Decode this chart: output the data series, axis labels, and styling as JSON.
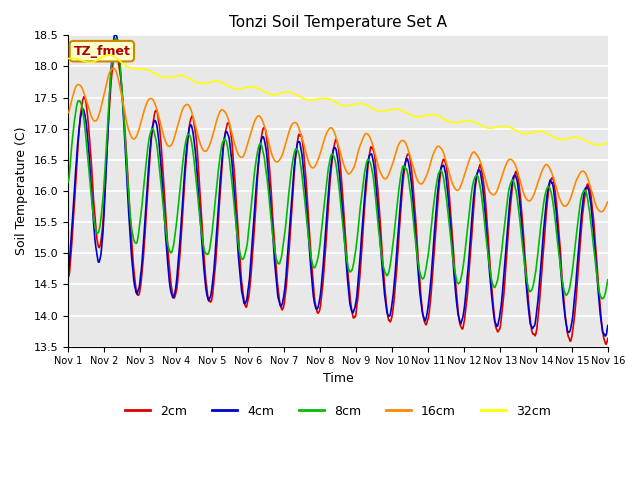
{
  "title": "Tonzi Soil Temperature Set A",
  "xlabel": "Time",
  "ylabel": "Soil Temperature (C)",
  "ylim": [
    13.5,
    18.5
  ],
  "xlim": [
    0,
    15
  ],
  "bg_color": "#e8e8e8",
  "legend_label": "TZ_fmet",
  "series_colors": {
    "2cm": "#dd0000",
    "4cm": "#0000cc",
    "8cm": "#00bb00",
    "16cm": "#ff8800",
    "32cm": "#ffff00"
  },
  "xtick_labels": [
    "Nov 1",
    "Nov 2",
    "Nov 3",
    "Nov 4",
    "Nov 5",
    "Nov 6",
    "Nov 7",
    "Nov 8",
    "Nov 9",
    "Nov 10",
    "Nov 11",
    "Nov 12",
    "Nov 13",
    "Nov 14",
    "Nov 15",
    "Nov 16"
  ],
  "ytick_values": [
    13.5,
    14.0,
    14.5,
    15.0,
    15.5,
    16.0,
    16.5,
    17.0,
    17.5,
    18.0,
    18.5
  ],
  "line_width": 1.2
}
